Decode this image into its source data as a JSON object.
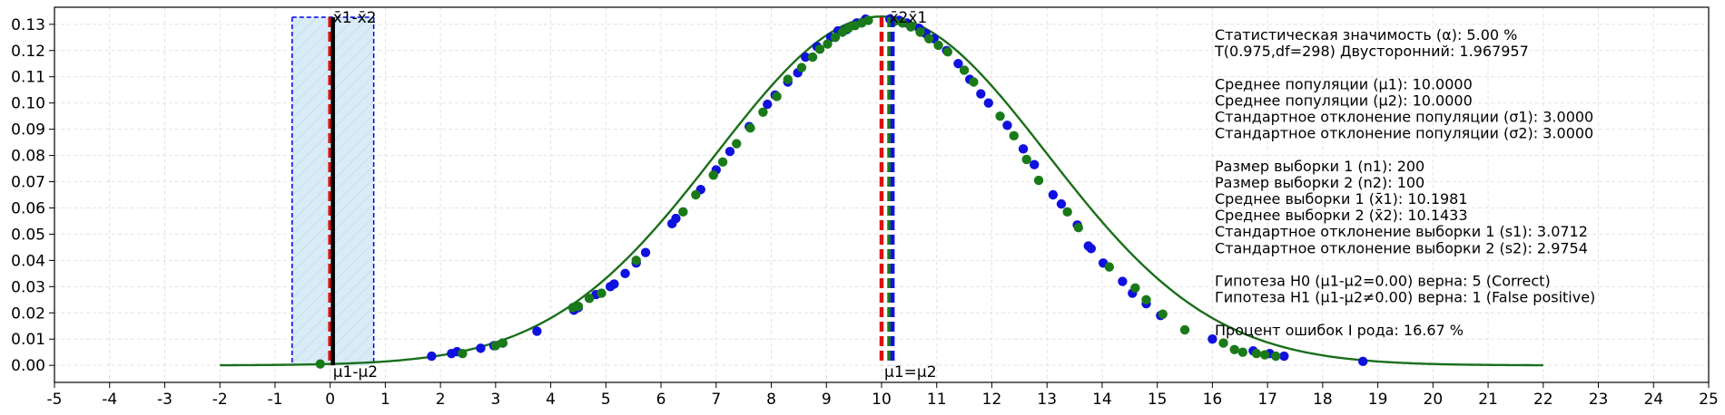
{
  "chart_data": {
    "type": "line",
    "xlim": [
      -5,
      25
    ],
    "ylim": [
      -0.0065,
      0.1365
    ],
    "x_ticks": [
      -5,
      -4,
      -3,
      -2,
      -1,
      0,
      1,
      2,
      3,
      4,
      5,
      6,
      7,
      8,
      9,
      10,
      11,
      12,
      13,
      14,
      15,
      16,
      17,
      18,
      19,
      20,
      21,
      22,
      23,
      24,
      25
    ],
    "y_ticks": [
      0.0,
      0.01,
      0.02,
      0.03,
      0.04,
      0.05,
      0.06,
      0.07,
      0.08,
      0.09,
      0.1,
      0.11,
      0.12,
      0.13
    ],
    "grid": true,
    "curve": {
      "mean": 10,
      "sd": 3,
      "x_range": [
        -2,
        22
      ],
      "color": "#1a6e1a"
    },
    "sample_points": {
      "blue": {
        "color": "#1010e0",
        "x": [
          1.84,
          2.2,
          2.3,
          2.73,
          2.97,
          3.13,
          3.75,
          4.42,
          4.5,
          4.82,
          5.08,
          5.15,
          5.35,
          5.55,
          5.72,
          6.2,
          6.27,
          6.72,
          7.0,
          7.25,
          7.6,
          7.93,
          8.07,
          8.3,
          8.48,
          8.62,
          8.83,
          9.08,
          9.21,
          9.37,
          9.55,
          9.71,
          10.15,
          10.32,
          10.46,
          10.68,
          10.8,
          10.95,
          11.18,
          11.39,
          11.6,
          11.8,
          11.94,
          12.28,
          12.57,
          12.77,
          13.11,
          13.26,
          13.55,
          13.75,
          13.8,
          14.02,
          14.37,
          14.55,
          14.8,
          15.06,
          16.0,
          16.74,
          17.04,
          17.3,
          18.73
        ],
        "y": [
          0.0035,
          0.0045,
          0.0052,
          0.0065,
          0.0075,
          0.0085,
          0.013,
          0.021,
          0.022,
          0.027,
          0.03,
          0.031,
          0.035,
          0.039,
          0.043,
          0.054,
          0.056,
          0.067,
          0.0745,
          0.0815,
          0.091,
          0.0995,
          0.103,
          0.108,
          0.1115,
          0.1175,
          0.1215,
          0.125,
          0.1275,
          0.128,
          0.1305,
          0.132,
          0.132,
          0.1315,
          0.1305,
          0.1285,
          0.1265,
          0.1245,
          0.12,
          0.115,
          0.109,
          0.1035,
          0.1,
          0.0915,
          0.0825,
          0.0765,
          0.065,
          0.0615,
          0.0535,
          0.0455,
          0.0445,
          0.039,
          0.032,
          0.0275,
          0.0235,
          0.019,
          0.01,
          0.0055,
          0.0045,
          0.0035,
          0.0015
        ]
      },
      "green": {
        "color": "#1a7a1a",
        "x": [
          -0.18,
          2.4,
          3.0,
          3.13,
          4.4,
          4.5,
          4.7,
          4.92,
          5.55,
          6.4,
          6.63,
          6.95,
          7.12,
          7.37,
          7.62,
          7.85,
          8.1,
          8.3,
          8.55,
          8.75,
          8.88,
          9.02,
          9.16,
          9.29,
          9.4,
          9.52,
          9.64,
          9.76,
          10.22,
          10.38,
          10.53,
          10.7,
          10.86,
          11.03,
          11.2,
          11.5,
          11.67,
          12.15,
          12.4,
          12.63,
          12.85,
          13.37,
          13.57,
          14.13,
          14.6,
          14.8,
          15.1,
          15.5,
          16.2,
          16.4,
          16.55,
          16.8,
          16.95,
          17.15
        ],
        "y": [
          0.0005,
          0.0045,
          0.0075,
          0.0085,
          0.022,
          0.0225,
          0.0255,
          0.0275,
          0.04,
          0.0585,
          0.065,
          0.0725,
          0.0775,
          0.0845,
          0.0905,
          0.0965,
          0.1025,
          0.109,
          0.1135,
          0.1175,
          0.1205,
          0.1225,
          0.125,
          0.127,
          0.1285,
          0.1295,
          0.1305,
          0.1315,
          0.131,
          0.1305,
          0.129,
          0.127,
          0.1245,
          0.122,
          0.1195,
          0.1125,
          0.108,
          0.095,
          0.0875,
          0.0785,
          0.0705,
          0.0585,
          0.0525,
          0.0375,
          0.0295,
          0.025,
          0.0195,
          0.0135,
          0.0085,
          0.006,
          0.005,
          0.0045,
          0.004,
          0.0035
        ]
      }
    },
    "vertical_lines": [
      {
        "x": 0.0,
        "color": "#e01010",
        "dash": true
      },
      {
        "x": 0.05,
        "color": "#000000",
        "dash": false
      },
      {
        "x": 10.0,
        "color": "#e01010",
        "dash": true
      },
      {
        "x": 10.14,
        "color": "#1a7a1a",
        "dash": true
      },
      {
        "x": 10.2,
        "color": "#1010e0",
        "dash": true
      }
    ],
    "confidence_interval": {
      "x_start": -0.69,
      "x_end": 0.79,
      "top": 0.1327,
      "fill": "#d9ebf6",
      "edge": "#0000ee"
    },
    "labels": {
      "ci_label": "x̄1-x̄2",
      "diff_mu_label": "μ1-μ2",
      "equal_mu_label": "μ1=μ2",
      "sample_means_label": "x̄2x̄1"
    },
    "stats_text": [
      "Статистическая значимость (α): 5.00 %",
      "T(0.975,df=298) Двусторонний: 1.967957",
      "",
      "Среднее популяции (μ1): 10.0000",
      "Среднее популяции (μ2): 10.0000",
      "Стандартное отклонение популяции (σ1): 3.0000",
      "Стандартное отклонение популяции (σ2): 3.0000",
      "",
      "Размер выборки 1 (n1): 200",
      "Размер выборки 2 (n2): 100",
      "Среднее выборки 1 (x̄1): 10.1981",
      "Среднее выборки 2 (x̄2): 10.1433",
      "Стандартное отклонение выборки 1 (s1): 3.0712",
      "Стандартное отклонение выборки 2 (s2): 2.9754",
      "",
      "Гипотеза H0 (μ1-μ2=0.00) верна: 5 (Correct)",
      "Гипотеза H1 (μ1-μ2≠0.00) верна: 1 (False positive)",
      "",
      "Процент ошибок I рода: 16.67 %"
    ]
  }
}
